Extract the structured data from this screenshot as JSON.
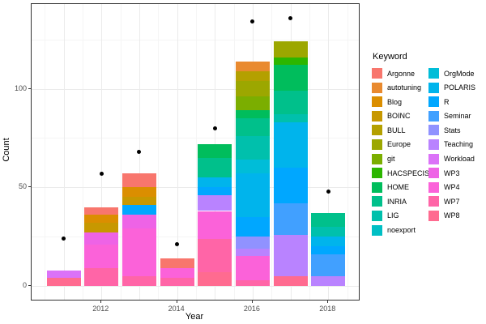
{
  "axes": {
    "x_label": "Year",
    "y_label": "Count"
  },
  "legend": {
    "title": "Keyword",
    "position": "right"
  },
  "chart_data": {
    "type": "bar",
    "stacked": true,
    "title": "",
    "xlabel": "Year",
    "ylabel": "Count",
    "categories": [
      2011,
      2012,
      2013,
      2014,
      2015,
      2016,
      2017,
      2018
    ],
    "x_ticks": [
      2012,
      2014,
      2016,
      2018
    ],
    "y_ticks": [
      0,
      50,
      100
    ],
    "y_minor_ticks": [
      25,
      75,
      125
    ],
    "xlim": [
      2010.15,
      2018.81
    ],
    "ylim": [
      -7,
      143
    ],
    "bar_width_years": 0.9,
    "grid": true,
    "legend_title": "Keyword",
    "legend_position": "right",
    "series": [
      {
        "name": "Argonne",
        "color": "#F8766D",
        "values": [
          0,
          4,
          7,
          5,
          0,
          0,
          0,
          0
        ]
      },
      {
        "name": "autotuning",
        "color": "#E98A2F",
        "values": [
          0,
          0,
          0,
          0,
          0,
          5,
          0,
          0
        ]
      },
      {
        "name": "Blog",
        "color": "#DB8E00",
        "values": [
          0,
          4,
          5,
          0,
          0,
          0,
          0,
          0
        ]
      },
      {
        "name": "BOINC",
        "color": "#C79800",
        "values": [
          0,
          5,
          4,
          0,
          0,
          0,
          0,
          0
        ]
      },
      {
        "name": "BULL",
        "color": "#B4A000",
        "values": [
          0,
          0,
          0,
          0,
          0,
          5,
          0,
          0
        ]
      },
      {
        "name": "Europe",
        "color": "#9CA700",
        "values": [
          0,
          0,
          0,
          0,
          0,
          8,
          8,
          0
        ]
      },
      {
        "name": "git",
        "color": "#7BAE00",
        "values": [
          0,
          0,
          0,
          0,
          0,
          7,
          0,
          0
        ]
      },
      {
        "name": "HACSPECIS",
        "color": "#2CB600",
        "values": [
          0,
          0,
          0,
          0,
          0,
          0,
          4,
          0
        ]
      },
      {
        "name": "HOME",
        "color": "#00BD5C",
        "values": [
          0,
          0,
          0,
          0,
          7,
          4,
          13,
          0
        ]
      },
      {
        "name": "INRIA",
        "color": "#00C08B",
        "values": [
          0,
          0,
          0,
          0,
          10,
          9,
          12,
          7
        ]
      },
      {
        "name": "LIG",
        "color": "#00C0AC",
        "values": [
          0,
          0,
          0,
          0,
          0,
          12,
          4,
          5
        ]
      },
      {
        "name": "noexport",
        "color": "#00BFC4",
        "values": [
          0,
          0,
          0,
          0,
          0,
          0,
          0,
          0
        ]
      },
      {
        "name": "OrgMode",
        "color": "#00BDD8",
        "values": [
          0,
          0,
          0,
          0,
          0,
          7,
          0,
          0
        ]
      },
      {
        "name": "POLARIS",
        "color": "#00B4EC",
        "values": [
          0,
          0,
          0,
          0,
          5,
          22,
          23,
          5
        ]
      },
      {
        "name": "R",
        "color": "#00A7FF",
        "values": [
          0,
          0,
          5,
          0,
          4,
          10,
          18,
          4
        ]
      },
      {
        "name": "Seminar",
        "color": "#41A0FF",
        "values": [
          0,
          0,
          0,
          0,
          0,
          0,
          16,
          11
        ]
      },
      {
        "name": "Stats",
        "color": "#9092FF",
        "values": [
          0,
          0,
          0,
          0,
          0,
          6,
          0,
          0
        ]
      },
      {
        "name": "Teaching",
        "color": "#B983FF",
        "values": [
          0,
          0,
          0,
          0,
          8,
          4,
          21,
          5
        ]
      },
      {
        "name": "Workload",
        "color": "#DB72F8",
        "values": [
          4,
          0,
          0,
          0,
          0,
          0,
          0,
          0
        ]
      },
      {
        "name": "WP3",
        "color": "#EE63E6",
        "values": [
          0,
          6,
          7,
          0,
          0,
          0,
          0,
          0
        ]
      },
      {
        "name": "WP4",
        "color": "#FB62D9",
        "values": [
          0,
          12,
          24,
          5,
          14,
          12,
          0,
          0
        ]
      },
      {
        "name": "WP7",
        "color": "#FF65A7",
        "values": [
          0,
          9,
          5,
          4,
          17,
          3,
          0,
          0
        ]
      },
      {
        "name": "WP8",
        "color": "#FF6B90",
        "values": [
          4,
          0,
          0,
          0,
          7,
          0,
          5,
          0
        ]
      }
    ],
    "points_overlay": {
      "marker": "circle",
      "color": "#000000",
      "values": [
        24,
        57,
        68,
        21,
        80,
        134,
        136,
        48
      ]
    },
    "colors": {
      "panel_border": "#333333",
      "grid_major": "#EBEBEB",
      "grid_minor": "#F5F5F5",
      "tick_text": "#4d4d4d",
      "title_text": "#000000"
    }
  }
}
